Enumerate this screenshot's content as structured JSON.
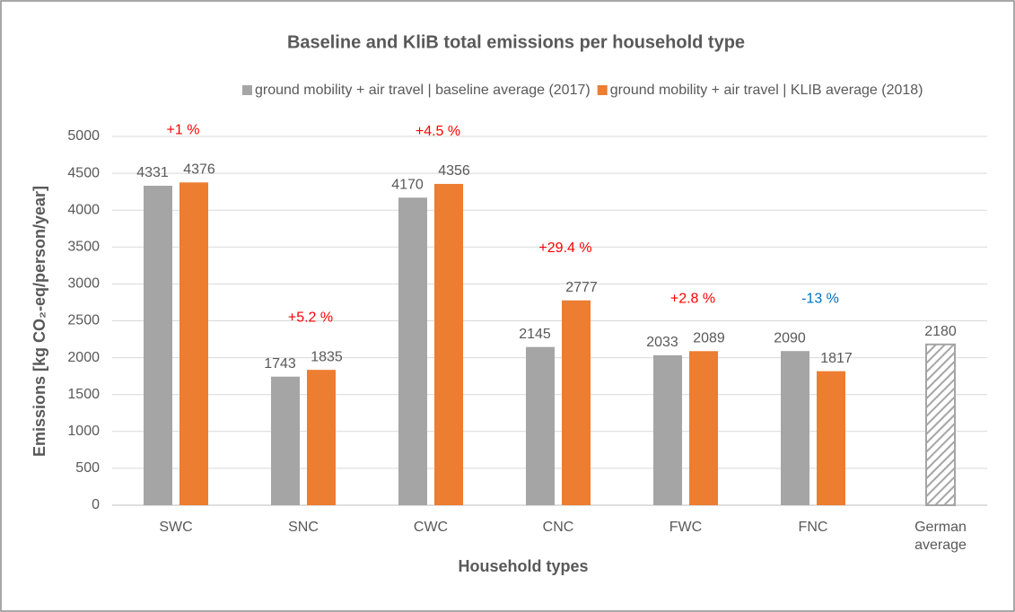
{
  "chart_data": {
    "type": "bar",
    "title": "Baseline and KliB total emissions per household type",
    "xlabel": "Household types",
    "ylabel": "Emissions  [kg CO₂-eq/person/year]",
    "categories": [
      "SWC",
      "SNC",
      "CWC",
      "CNC",
      "FWC",
      "FNC",
      "German average"
    ],
    "series": [
      {
        "name": "ground mobility + air travel | baseline average (2017)",
        "color": "#a5a5a5",
        "values": [
          4331,
          1743,
          4170,
          2145,
          2033,
          2090,
          null
        ]
      },
      {
        "name": "ground mobility + air travel | KLIB average (2018)",
        "color": "#ed7d31",
        "values": [
          4376,
          1835,
          4356,
          2777,
          2089,
          1817,
          null
        ]
      }
    ],
    "reference_values": [
      null,
      null,
      null,
      null,
      null,
      null,
      2180
    ],
    "reference_color": "#a5a5a5",
    "annotations": [
      {
        "text": "+1 %",
        "color": "#ff0000"
      },
      {
        "text": "+5.2 %",
        "color": "#ff0000"
      },
      {
        "text": "+4.5 %",
        "color": "#ff0000"
      },
      {
        "text": "+29.4 %",
        "color": "#ff0000"
      },
      {
        "text": "+2.8 %",
        "color": "#ff0000"
      },
      {
        "text": "-13 %",
        "color": "#0070c0"
      },
      null
    ],
    "ylim": [
      0,
      5000
    ],
    "yticks": [
      0,
      500,
      1000,
      1500,
      2000,
      2500,
      3000,
      3500,
      4000,
      4500,
      5000
    ],
    "grid": true
  }
}
